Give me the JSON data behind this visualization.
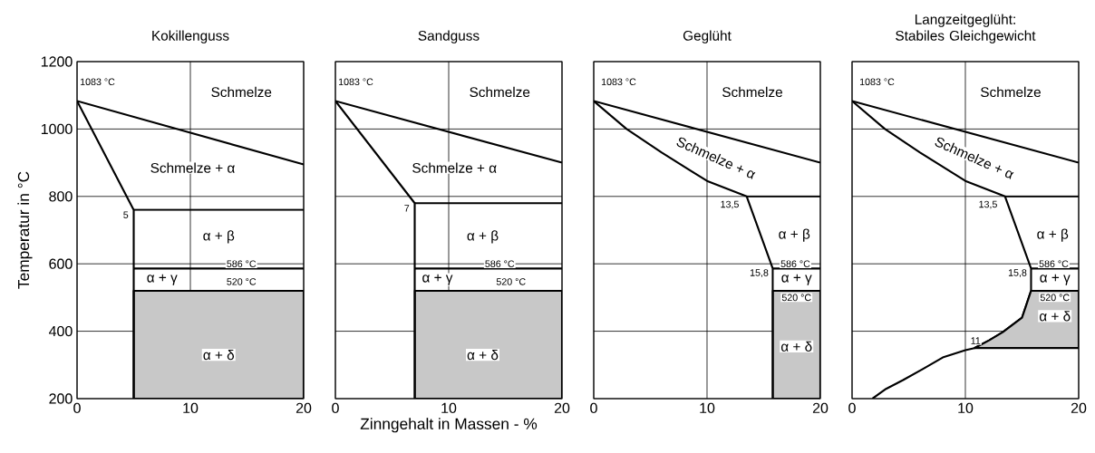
{
  "chart_data": [
    {
      "type": "line",
      "title": "Kokillenguss",
      "ylabel": "Temperatur in °C",
      "xlim": [
        0,
        20
      ],
      "ylim": [
        200,
        1200
      ],
      "xticks": [
        0,
        10,
        20
      ],
      "yticks": [
        200,
        400,
        600,
        800,
        1000,
        1200
      ],
      "grid": true,
      "marker": "none",
      "series": [
        {
          "color": "#000000",
          "x": [
            0,
            20
          ],
          "values": [
            1083,
            895
          ]
        },
        {
          "color": "#000000",
          "x": [
            0,
            5,
            5
          ],
          "values": [
            1083,
            760,
            200
          ]
        },
        {
          "color": "#000000",
          "x": [
            5,
            20
          ],
          "values": [
            760,
            760
          ]
        },
        {
          "color": "#000000",
          "x": [
            5,
            20
          ],
          "values": [
            586,
            586
          ]
        },
        {
          "type": "area",
          "color": "#c8c8c8",
          "x": [
            5,
            20
          ],
          "values": [
            520,
            520
          ]
        }
      ],
      "annotations": [
        "1083 °C",
        "Schmelze",
        "Schmelze + α",
        "5",
        "α + β",
        "586 °C",
        "α + γ",
        "520 °C",
        "α + δ"
      ]
    },
    {
      "type": "line",
      "title": "Sandguss",
      "xlabel": "Zinngehalt in Massen - %",
      "xlim": [
        0,
        20
      ],
      "ylim": [
        200,
        1200
      ],
      "xticks": [
        0,
        10,
        20
      ],
      "yticks": [
        200,
        400,
        600,
        800,
        1000,
        1200
      ],
      "grid": true,
      "tick_labels": "x",
      "marker": "none",
      "series": [
        {
          "color": "#000000",
          "x": [
            0,
            20
          ],
          "values": [
            1083,
            900
          ]
        },
        {
          "color": "#000000",
          "x": [
            0,
            7,
            7
          ],
          "values": [
            1083,
            780,
            200
          ]
        },
        {
          "color": "#000000",
          "x": [
            7,
            20
          ],
          "values": [
            780,
            780
          ]
        },
        {
          "color": "#000000",
          "x": [
            7,
            20
          ],
          "values": [
            586,
            586
          ]
        },
        {
          "type": "area",
          "color": "#c8c8c8",
          "x": [
            7,
            20
          ],
          "values": [
            520,
            520
          ]
        }
      ],
      "annotations": [
        "1083 °C",
        "Schmelze",
        "Schmelze + α",
        "7",
        "α + β",
        "586 °C",
        "α + γ",
        "520 °C",
        "α + δ"
      ]
    },
    {
      "type": "line",
      "title": "Geglüht",
      "xlim": [
        0,
        20
      ],
      "ylim": [
        200,
        1200
      ],
      "xticks": [
        0,
        10,
        20
      ],
      "yticks": [
        200,
        400,
        600,
        800,
        1000,
        1200
      ],
      "grid": true,
      "tick_labels": "x",
      "marker": "none",
      "series": [
        {
          "color": "#000000",
          "x": [
            0,
            20
          ],
          "values": [
            1083,
            900
          ]
        },
        {
          "color": "#000000",
          "x": [
            0,
            2.9,
            6,
            10,
            13.5,
            15.8,
            15.8
          ],
          "values": [
            1083,
            1000,
            930,
            846,
            800,
            586,
            200
          ]
        },
        {
          "color": "#000000",
          "x": [
            13.5,
            20
          ],
          "values": [
            800,
            800
          ]
        },
        {
          "color": "#000000",
          "x": [
            15.8,
            20
          ],
          "values": [
            586,
            586
          ]
        },
        {
          "type": "area",
          "color": "#c8c8c8",
          "x": [
            15.8,
            20
          ],
          "values": [
            520,
            520
          ]
        }
      ],
      "annotations": [
        "1083 °C",
        "Schmelze",
        "Schmelze + α",
        "13,5",
        "α + β",
        "586 °C",
        "α + γ",
        "15,8",
        "520 °C",
        "α + δ"
      ]
    },
    {
      "type": "line",
      "title": "Langzeitgeglüht: Stabiles Gleichgewicht",
      "xlim": [
        0,
        20
      ],
      "ylim": [
        200,
        1200
      ],
      "xticks": [
        0,
        10,
        20
      ],
      "yticks": [
        200,
        400,
        600,
        800,
        1000,
        1200
      ],
      "grid": true,
      "tick_labels": "x",
      "marker": "none",
      "series": [
        {
          "color": "#000000",
          "x": [
            0,
            20
          ],
          "values": [
            1083,
            900
          ]
        },
        {
          "color": "#000000",
          "x": [
            0,
            2.9,
            6,
            10,
            13.5,
            15.8,
            15.8,
            15.4,
            15.0,
            13.3,
            12.1,
            10.8,
            10,
            8,
            6.2,
            4.5,
            3,
            1.8
          ],
          "values": [
            1083,
            1000,
            930,
            846,
            800,
            586,
            520,
            480,
            440,
            397,
            373,
            350,
            344,
            322,
            287,
            255,
            229,
            200
          ]
        },
        {
          "color": "#000000",
          "x": [
            13.5,
            20
          ],
          "values": [
            800,
            800
          ]
        },
        {
          "color": "#000000",
          "x": [
            15.8,
            20
          ],
          "values": [
            586,
            586
          ]
        },
        {
          "color": "#000000",
          "x": [
            10.8,
            12.1,
            13.3,
            15.0,
            15.4,
            15.8,
            20
          ],
          "values": [
            350,
            350,
            350,
            350,
            350,
            350,
            350
          ],
          "lower": [
            350,
            350,
            350,
            350,
            350,
            350,
            350
          ],
          "upper": [
            350,
            373,
            397,
            440,
            480,
            520,
            520
          ]
        }
      ],
      "annotations": [
        "1083 °C",
        "Schmelze",
        "Schmelze + α",
        "13,5",
        "α + β",
        "586 °C",
        "α + γ",
        "15,8",
        "520 °C",
        "α + δ",
        "11"
      ]
    }
  ]
}
